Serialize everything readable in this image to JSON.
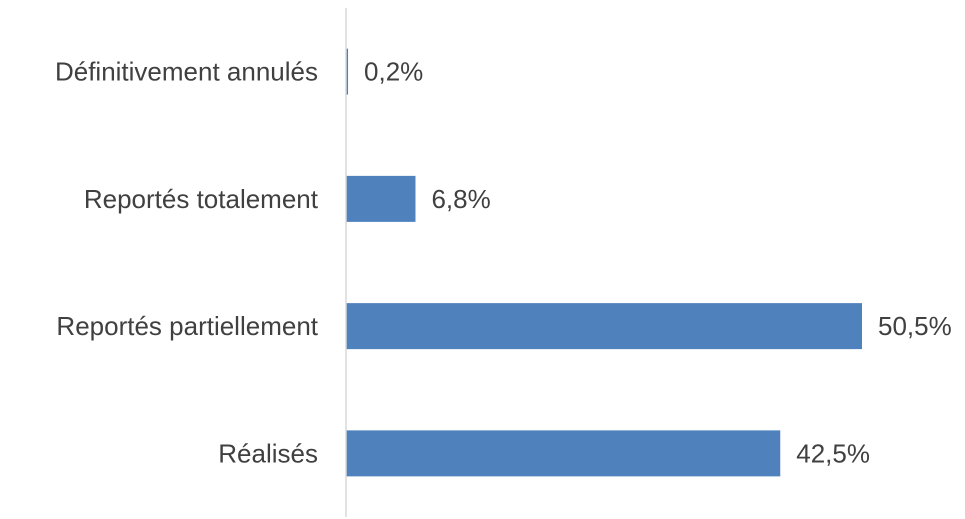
{
  "chart_data": {
    "type": "bar",
    "orientation": "horizontal",
    "categories": [
      "Définitivement annulés",
      "Reportés totalement",
      "Reportés partiellement",
      "Réalisés"
    ],
    "values": [
      0.2,
      6.8,
      50.5,
      42.5
    ],
    "value_labels": [
      "0,2%",
      "6,8%",
      "50,5%",
      "42,5%"
    ],
    "xlim": [
      0,
      50.5
    ],
    "grid": false,
    "legend": "none",
    "colors": {
      "bar": "#4F81BD",
      "axis": "#D9D9D9",
      "text": "#404040"
    }
  }
}
